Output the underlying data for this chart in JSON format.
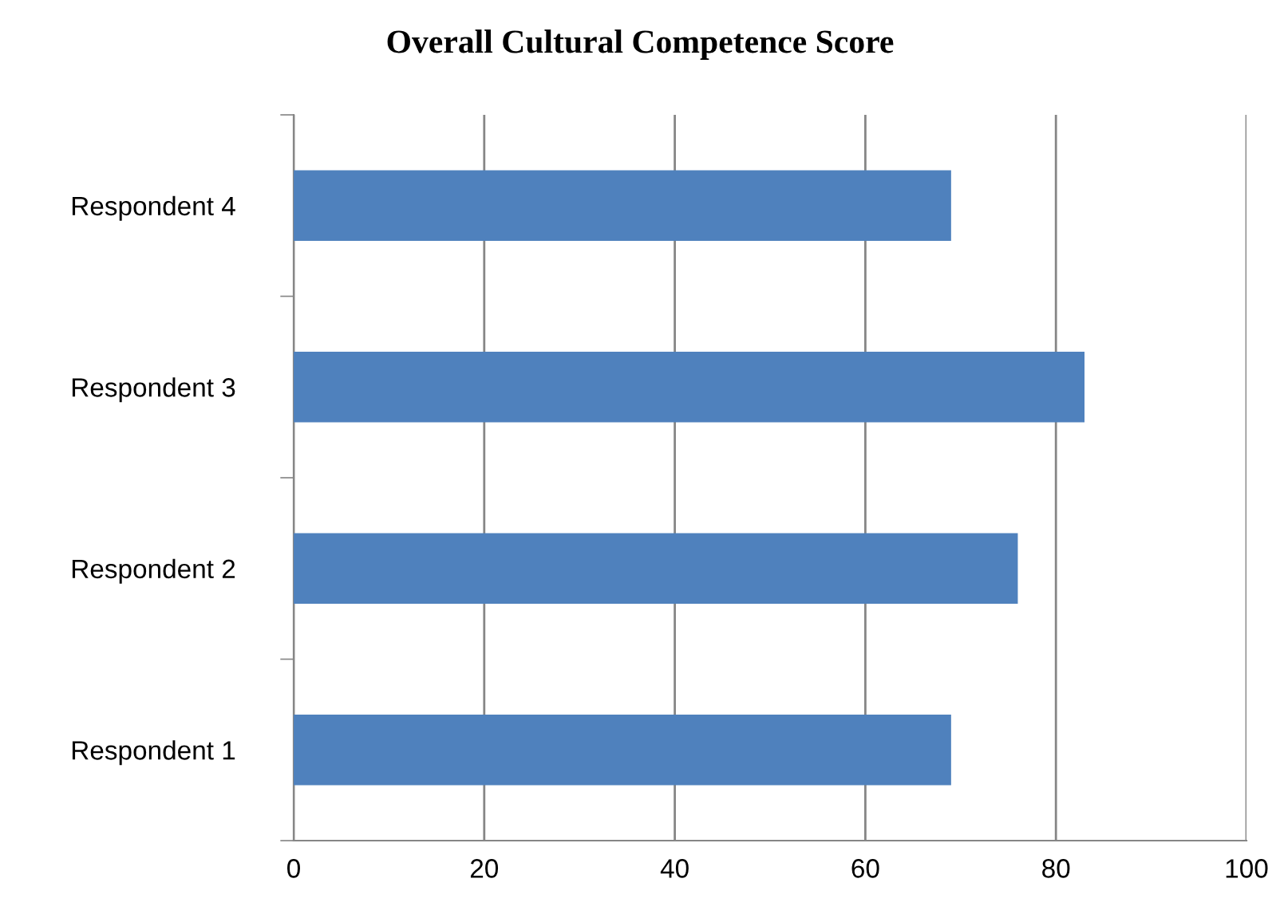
{
  "chart_data": {
    "type": "bar",
    "orientation": "horizontal",
    "title": "Overall Cultural Competence Score",
    "categories": [
      "Respondent 4",
      "Respondent 3",
      "Respondent 2",
      "Respondent 1"
    ],
    "values": [
      69,
      83,
      76,
      69
    ],
    "color": "#4f81bd",
    "xlim": [
      0,
      100
    ],
    "xticks": [
      0,
      20,
      40,
      60,
      80,
      100
    ],
    "grid": "x",
    "legend": false
  }
}
